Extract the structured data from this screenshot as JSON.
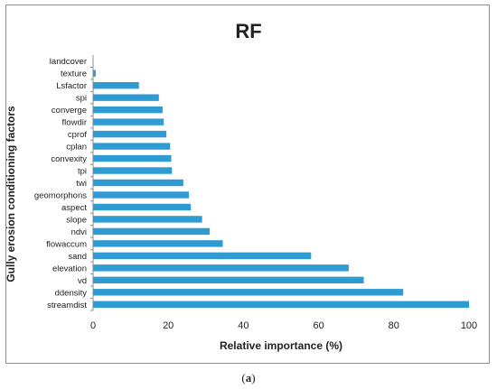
{
  "caption": {
    "open": "(",
    "letter": "a",
    "close": ")"
  },
  "chart_data": {
    "type": "bar",
    "orientation": "horizontal",
    "title": "RF",
    "xlabel": "Relative importance (%)",
    "ylabel": "Gully erosion conditioning factors",
    "xlim": [
      0,
      100
    ],
    "xticks": [
      0,
      20,
      40,
      60,
      80,
      100
    ],
    "grid": false,
    "bar_color": "#2f9bd3",
    "categories": [
      "streamdist",
      "ddensity",
      "vd",
      "elevation",
      "sand",
      "flowaccum",
      "ndvi",
      "slope",
      "aspect",
      "geomorphons",
      "twi",
      "tpi",
      "convexity",
      "cplan",
      "cprof",
      "flowdir",
      "converge",
      "spi",
      "Lsfactor",
      "texture",
      "landcover"
    ],
    "values": [
      100,
      82.5,
      72,
      68,
      58,
      34.5,
      31,
      29,
      26,
      25.5,
      24,
      21,
      20.8,
      20.5,
      19.5,
      18.8,
      18.5,
      17.5,
      12.2,
      0.7,
      0
    ]
  }
}
